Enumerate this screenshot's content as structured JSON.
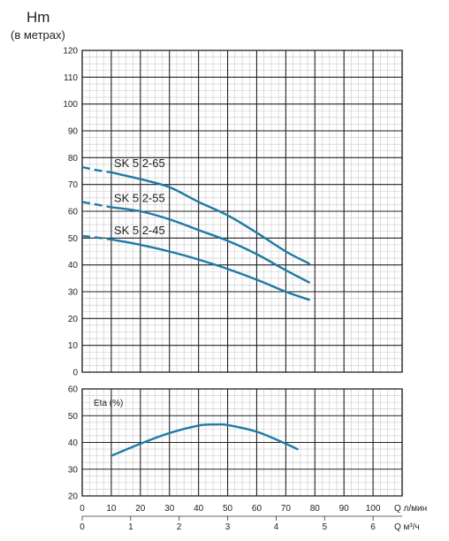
{
  "chart_data": [
    {
      "type": "line",
      "title": "Hm",
      "subtitle": "(в метрах)",
      "ylim": [
        0,
        120
      ],
      "yticks": [
        0,
        10,
        20,
        30,
        40,
        50,
        60,
        70,
        80,
        90,
        100,
        110,
        120
      ],
      "xlim": [
        0,
        110
      ],
      "grid": true,
      "series": [
        {
          "name": "SK 5 2-65",
          "dashed_start": [
            [
              0,
              76.5
            ],
            [
              5,
              75.3
            ]
          ],
          "values": [
            [
              10,
              74.5
            ],
            [
              20,
              72
            ],
            [
              30,
              69
            ],
            [
              40,
              63.5
            ],
            [
              50,
              58.5
            ],
            [
              60,
              52
            ],
            [
              70,
              45
            ],
            [
              78,
              40.5
            ]
          ]
        },
        {
          "name": "SK 5 2-55",
          "dashed_start": [
            [
              0,
              63.5
            ],
            [
              5,
              62.5
            ]
          ],
          "values": [
            [
              10,
              61.5
            ],
            [
              20,
              60
            ],
            [
              30,
              57
            ],
            [
              40,
              53
            ],
            [
              50,
              49
            ],
            [
              60,
              44
            ],
            [
              70,
              38
            ],
            [
              78,
              33.5
            ]
          ]
        },
        {
          "name": "SK 5 2-45",
          "dashed_start": [
            [
              0,
              50.8
            ],
            [
              5,
              50.2
            ]
          ],
          "values": [
            [
              10,
              49.5
            ],
            [
              20,
              47.5
            ],
            [
              30,
              45
            ],
            [
              40,
              42
            ],
            [
              50,
              38.5
            ],
            [
              60,
              34.5
            ],
            [
              70,
              30
            ],
            [
              78,
              27
            ]
          ]
        }
      ]
    },
    {
      "type": "line",
      "ylabel": "Eta (%)",
      "ylim": [
        20,
        60
      ],
      "yticks": [
        20,
        30,
        40,
        50,
        60
      ],
      "xlim": [
        0,
        110
      ],
      "grid": true,
      "series": [
        {
          "values": [
            [
              10,
              35
            ],
            [
              20,
              39.5
            ],
            [
              30,
              43.5
            ],
            [
              40,
              46.3
            ],
            [
              46,
              46.7
            ],
            [
              50,
              46.5
            ],
            [
              60,
              44
            ],
            [
              70,
              39.5
            ],
            [
              74,
              37.5
            ]
          ]
        }
      ]
    }
  ],
  "x_axis_lpm": {
    "label": "Q л/мин",
    "ticks": [
      0,
      10,
      20,
      30,
      40,
      50,
      60,
      70,
      80,
      90,
      100
    ]
  },
  "x_axis_m3h": {
    "label": "Q м³/ч",
    "ticks": [
      0,
      1,
      2,
      3,
      4,
      5,
      6
    ]
  },
  "colors": {
    "curve": "#1f7aa6",
    "grid_major": "#222222",
    "grid_minor": "#c8c8c8"
  }
}
